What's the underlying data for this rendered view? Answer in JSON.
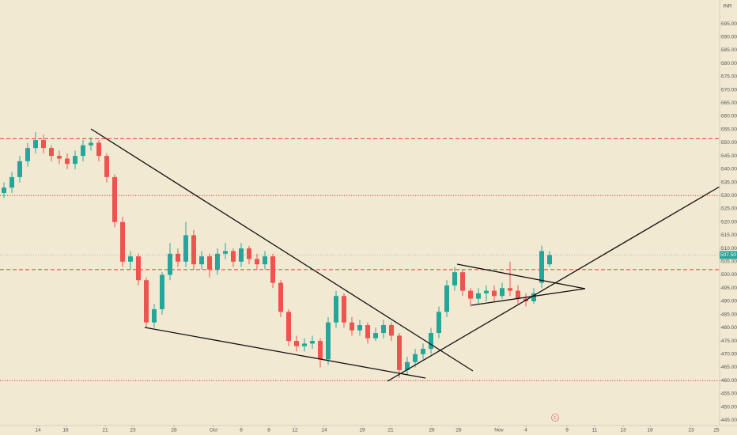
{
  "chart_data": {
    "type": "candlestick",
    "currency": "INR",
    "up_color": "#26a69a",
    "down_color": "#ef5350",
    "xlim": [
      0,
      91
    ],
    "ylim": [
      443,
      604
    ],
    "open": [
      531,
      533,
      537,
      543,
      548,
      551,
      548,
      545,
      544,
      542,
      545,
      549,
      550,
      545,
      537,
      520,
      505,
      507,
      498,
      482,
      487,
      500,
      508,
      505,
      515,
      504,
      507,
      502,
      508,
      509,
      505,
      510,
      506,
      504,
      507,
      497,
      486,
      475,
      473,
      474,
      475,
      468,
      482,
      492,
      482,
      479,
      481,
      476,
      478,
      481,
      477,
      464,
      467,
      470,
      472,
      478,
      486,
      496,
      501,
      494,
      491,
      493,
      494,
      492,
      495,
      494,
      491,
      490,
      497,
      504
    ],
    "high": [
      535,
      539,
      545,
      550,
      554,
      553,
      549,
      547,
      546,
      547,
      551,
      552,
      551,
      546,
      538,
      522,
      509,
      508,
      499,
      489,
      501,
      512,
      510,
      520,
      517,
      509,
      508,
      510,
      512,
      510,
      512,
      511,
      508,
      509,
      508,
      498,
      487,
      477,
      476,
      477,
      476,
      484,
      494,
      493,
      484,
      483,
      482,
      480,
      483,
      482,
      478,
      469,
      472,
      474,
      480,
      488,
      498,
      503,
      502,
      495,
      495,
      496,
      496,
      497,
      505,
      496,
      493,
      495,
      511,
      509
    ],
    "low": [
      529,
      531,
      535,
      541,
      546,
      546,
      543,
      542,
      540,
      540,
      543,
      547,
      543,
      535,
      518,
      503,
      502,
      496,
      480,
      480,
      485,
      498,
      503,
      503,
      502,
      502,
      499,
      500,
      506,
      503,
      503,
      504,
      502,
      502,
      495,
      484,
      473,
      471,
      471,
      472,
      465,
      466,
      480,
      480,
      477,
      477,
      474,
      475,
      476,
      475,
      461,
      462,
      465,
      468,
      470,
      476,
      484,
      494,
      492,
      488,
      489,
      490,
      490,
      491,
      492,
      489,
      488,
      489,
      495,
      503
    ],
    "close": [
      533,
      537,
      543,
      548,
      551,
      548,
      545,
      544,
      542,
      545,
      549,
      550,
      545,
      537,
      520,
      505,
      507,
      498,
      482,
      487,
      500,
      508,
      505,
      515,
      504,
      507,
      502,
      508,
      509,
      505,
      510,
      506,
      504,
      507,
      497,
      486,
      475,
      473,
      474,
      475,
      468,
      482,
      492,
      482,
      479,
      481,
      476,
      478,
      481,
      477,
      464,
      467,
      470,
      472,
      478,
      486,
      496,
      501,
      494,
      491,
      493,
      494,
      492,
      495,
      494,
      491,
      490,
      493,
      509,
      507.5
    ],
    "last_price": {
      "value": 507.5,
      "label": "507.50"
    },
    "levels": [
      {
        "value": 551.5,
        "style": "dashed",
        "color": "#e53935"
      },
      {
        "value": 530,
        "style": "dotted",
        "color": "#e53935"
      },
      {
        "value": 502,
        "style": "dashed",
        "color": "#e53935"
      },
      {
        "value": 460,
        "style": "dotted",
        "color": "#e53935"
      }
    ],
    "xticks": [
      {
        "value": 4.8,
        "label": "14"
      },
      {
        "value": 8.3,
        "label": "16"
      },
      {
        "value": 13.3,
        "label": "21"
      },
      {
        "value": 16.8,
        "label": "23"
      },
      {
        "value": 22,
        "label": "28"
      },
      {
        "value": 27,
        "label": "Oct"
      },
      {
        "value": 30.5,
        "label": "6"
      },
      {
        "value": 34,
        "label": "8"
      },
      {
        "value": 37.3,
        "label": "12"
      },
      {
        "value": 41,
        "label": "14"
      },
      {
        "value": 45.8,
        "label": "19"
      },
      {
        "value": 49.4,
        "label": "21"
      },
      {
        "value": 54.6,
        "label": "26"
      },
      {
        "value": 58,
        "label": "28"
      },
      {
        "value": 63.1,
        "label": "Nov"
      },
      {
        "value": 66.5,
        "label": "4"
      },
      {
        "value": 71.7,
        "label": "9"
      },
      {
        "value": 75.2,
        "label": "11"
      },
      {
        "value": 78.8,
        "label": "13"
      },
      {
        "value": 82.2,
        "label": "18"
      },
      {
        "value": 87.4,
        "label": "23"
      },
      {
        "value": 90.6,
        "label": "25"
      }
    ],
    "yticks": [
      {
        "value": 595,
        "label": "595.00"
      },
      {
        "value": 590,
        "label": "590.00"
      },
      {
        "value": 585,
        "label": "585.00"
      },
      {
        "value": 580,
        "label": "580.00"
      },
      {
        "value": 575,
        "label": "575.00"
      },
      {
        "value": 570,
        "label": "570.00"
      },
      {
        "value": 565,
        "label": "565.00"
      },
      {
        "value": 560,
        "label": "560.00"
      },
      {
        "value": 555,
        "label": "555.00"
      },
      {
        "value": 550,
        "label": "550.00"
      },
      {
        "value": 545,
        "label": "545.00"
      },
      {
        "value": 540,
        "label": "540.00"
      },
      {
        "value": 535,
        "label": "535.00"
      },
      {
        "value": 530,
        "label": "530.00"
      },
      {
        "value": 525,
        "label": "525.00"
      },
      {
        "value": 520,
        "label": "520.00"
      },
      {
        "value": 515,
        "label": "515.00"
      },
      {
        "value": 510,
        "label": "510.00"
      },
      {
        "value": 505,
        "label": "505.00"
      },
      {
        "value": 500,
        "label": "500.00"
      },
      {
        "value": 495,
        "label": "495.00"
      },
      {
        "value": 490,
        "label": "490.00"
      },
      {
        "value": 485,
        "label": "485.00"
      },
      {
        "value": 480,
        "label": "480.00"
      },
      {
        "value": 475,
        "label": "475.00"
      },
      {
        "value": 470,
        "label": "470.00"
      },
      {
        "value": 465,
        "label": "465.00"
      },
      {
        "value": 460,
        "label": "460.00"
      },
      {
        "value": 455,
        "label": "455.00"
      },
      {
        "value": 450,
        "label": "450.00"
      },
      {
        "value": 445,
        "label": "445.00"
      }
    ]
  }
}
